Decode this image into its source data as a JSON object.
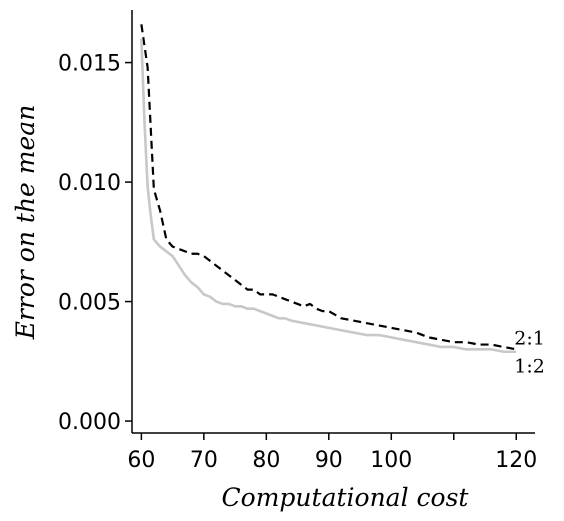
{
  "chart_data": {
    "type": "line",
    "xlabel": "Computational cost",
    "ylabel": "Error on the mean",
    "xlim": [
      58.5,
      123
    ],
    "ylim": [
      -0.0005,
      0.0172
    ],
    "x_ticks": [
      60,
      70,
      80,
      90,
      100,
      110,
      120
    ],
    "x_tick_labels": [
      "60",
      "70",
      "80",
      "90",
      "100",
      "",
      "120"
    ],
    "y_ticks": [
      0.0,
      0.005,
      0.01,
      0.015
    ],
    "y_tick_labels": [
      "0.000",
      "0.005",
      "0.010",
      "0.015"
    ],
    "grid": false,
    "legend": "none",
    "series": [
      {
        "name": "2:1",
        "style": "dashed",
        "color": "#000000",
        "x": [
          60,
          61,
          62,
          63,
          64,
          65,
          66,
          67,
          68,
          69,
          70,
          71,
          72,
          73,
          74,
          75,
          76,
          77,
          78,
          79,
          80,
          81,
          82,
          83,
          84,
          85,
          86,
          87,
          88,
          89,
          90,
          92,
          94,
          96,
          98,
          100,
          102,
          104,
          106,
          108,
          110,
          112,
          114,
          116,
          118,
          120
        ],
        "values": [
          0.0166,
          0.0148,
          0.0097,
          0.0088,
          0.0076,
          0.0073,
          0.0072,
          0.0071,
          0.007,
          0.007,
          0.0069,
          0.0067,
          0.0065,
          0.0063,
          0.0061,
          0.0059,
          0.0057,
          0.0055,
          0.0055,
          0.0053,
          0.0053,
          0.0053,
          0.0052,
          0.0051,
          0.005,
          0.0049,
          0.0048,
          0.0049,
          0.0047,
          0.0046,
          0.0046,
          0.0043,
          0.0042,
          0.0041,
          0.004,
          0.0039,
          0.0038,
          0.0037,
          0.0035,
          0.0034,
          0.0033,
          0.0033,
          0.0032,
          0.0032,
          0.0031,
          0.003
        ]
      },
      {
        "name": "1:2",
        "style": "solid",
        "color": "#c8c8c8",
        "x": [
          60,
          60.5,
          61,
          61.5,
          62,
          63,
          64,
          65,
          66,
          67,
          68,
          69,
          70,
          71,
          72,
          73,
          74,
          75,
          76,
          77,
          78,
          79,
          80,
          81,
          82,
          83,
          84,
          86,
          88,
          90,
          92,
          94,
          96,
          98,
          100,
          102,
          104,
          106,
          108,
          110,
          112,
          114,
          116,
          118,
          120
        ],
        "values": [
          0.016,
          0.0125,
          0.0098,
          0.0086,
          0.0076,
          0.0073,
          0.0071,
          0.0069,
          0.0065,
          0.0061,
          0.0058,
          0.0056,
          0.0053,
          0.0052,
          0.005,
          0.0049,
          0.0049,
          0.0048,
          0.0048,
          0.0047,
          0.0047,
          0.0046,
          0.0045,
          0.0044,
          0.0043,
          0.0043,
          0.0042,
          0.0041,
          0.004,
          0.0039,
          0.0038,
          0.0037,
          0.0036,
          0.0036,
          0.0035,
          0.0034,
          0.0033,
          0.0032,
          0.0031,
          0.0031,
          0.003,
          0.003,
          0.003,
          0.0029,
          0.0029
        ]
      }
    ]
  }
}
